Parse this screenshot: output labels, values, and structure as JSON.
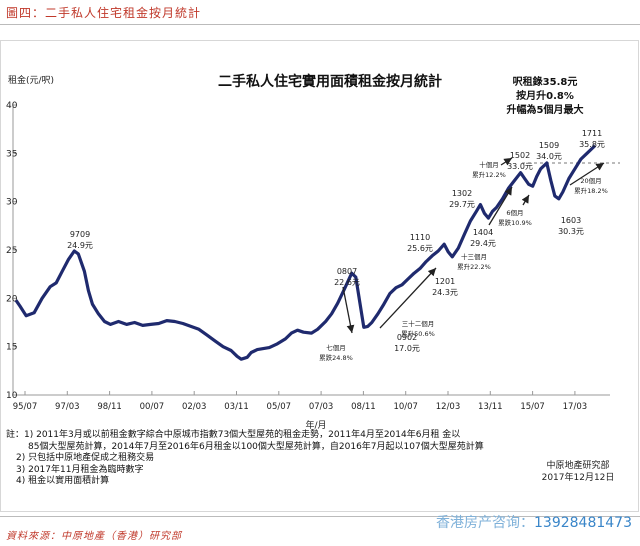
{
  "figure_caption": "圖四：二手私人住宅租金按月統計",
  "source": "資料來源：中原地產（香港）研究部",
  "watermark": {
    "prefix": "香港房产咨询：",
    "phone": "13928481473"
  },
  "credit": [
    "中原地產研究部",
    "2017年12月12日"
  ],
  "notes": [
    "註：1) 2011年3月或以前租金數字綜合中原城市指數73個大型屋苑的租金走勢，2011年4月至2014年6月租  金以",
    "85個大型屋苑計算，2014年7月至2016年6月租金以100個大型屋苑計算，自2016年7月起以107個大型屋苑計算",
    "2) 只包括中原地產促成之租務交易",
    "3) 2017年11月租金為臨時數字",
    "4) 租金以實用面積計算"
  ],
  "chart_data": {
    "type": "line",
    "title": "二手私人住宅實用面積租金按月統計",
    "ylabel": "租金(元/呎)",
    "xlabel": "年/月",
    "ylim": [
      10,
      40
    ],
    "yticks": [
      10,
      15,
      20,
      25,
      30,
      35,
      40
    ],
    "xticks": [
      "95/07",
      "97/03",
      "98/11",
      "00/07",
      "02/03",
      "03/11",
      "05/07",
      "07/03",
      "08/11",
      "10/07",
      "12/03",
      "13/11",
      "15/07",
      "17/03"
    ],
    "reference_line": 34.0,
    "headline": [
      "呎租錄35.8元",
      "按月升0.8%",
      "升幅為5個月最大"
    ],
    "series": [
      {
        "values": [
          [
            0,
            19.8
          ],
          [
            2,
            19.2
          ],
          [
            5,
            18.2
          ],
          [
            9,
            18.5
          ],
          [
            13,
            20.0
          ],
          [
            17,
            21.2
          ],
          [
            20,
            21.6
          ],
          [
            23,
            22.8
          ],
          [
            26,
            24.0
          ],
          [
            29,
            24.9
          ],
          [
            31,
            24.6
          ],
          [
            34,
            22.8
          ],
          [
            36,
            20.8
          ],
          [
            38,
            19.4
          ],
          [
            41,
            18.4
          ],
          [
            44,
            17.6
          ],
          [
            47,
            17.3
          ],
          [
            51,
            17.6
          ],
          [
            55,
            17.3
          ],
          [
            59,
            17.5
          ],
          [
            63,
            17.2
          ],
          [
            67,
            17.3
          ],
          [
            71,
            17.4
          ],
          [
            75,
            17.7
          ],
          [
            79,
            17.6
          ],
          [
            83,
            17.4
          ],
          [
            87,
            17.1
          ],
          [
            91,
            16.8
          ],
          [
            95,
            16.2
          ],
          [
            99,
            15.6
          ],
          [
            103,
            15.0
          ],
          [
            107,
            14.6
          ],
          [
            110,
            14.0
          ],
          [
            112,
            13.7
          ],
          [
            115,
            13.9
          ],
          [
            117,
            14.4
          ],
          [
            120,
            14.7
          ],
          [
            123,
            14.8
          ],
          [
            126,
            14.9
          ],
          [
            130,
            15.3
          ],
          [
            134,
            15.8
          ],
          [
            137,
            16.4
          ],
          [
            140,
            16.7
          ],
          [
            143,
            16.5
          ],
          [
            147,
            16.4
          ],
          [
            150,
            16.8
          ],
          [
            154,
            17.6
          ],
          [
            157,
            18.4
          ],
          [
            160,
            19.5
          ],
          [
            163,
            20.8
          ],
          [
            165,
            21.7
          ],
          [
            167,
            22.6
          ],
          [
            169,
            22.2
          ],
          [
            171,
            19.6
          ],
          [
            173,
            17.0
          ],
          [
            175,
            17.1
          ],
          [
            177,
            17.5
          ],
          [
            180,
            18.4
          ],
          [
            183,
            19.4
          ],
          [
            186,
            20.5
          ],
          [
            189,
            21.1
          ],
          [
            192,
            21.4
          ],
          [
            195,
            22.0
          ],
          [
            198,
            22.6
          ],
          [
            201,
            23.1
          ],
          [
            204,
            23.8
          ],
          [
            207,
            24.4
          ],
          [
            210,
            24.9
          ],
          [
            213,
            25.6
          ],
          [
            215,
            24.8
          ],
          [
            217,
            24.3
          ],
          [
            220,
            25.2
          ],
          [
            223,
            26.6
          ],
          [
            226,
            28.0
          ],
          [
            229,
            29.0
          ],
          [
            231,
            29.7
          ],
          [
            233,
            28.8
          ],
          [
            235,
            28.3
          ],
          [
            237,
            29.0
          ],
          [
            239,
            29.4
          ],
          [
            242,
            30.3
          ],
          [
            245,
            31.4
          ],
          [
            248,
            32.2
          ],
          [
            251,
            33.0
          ],
          [
            253,
            32.4
          ],
          [
            255,
            31.8
          ],
          [
            257,
            31.6
          ],
          [
            259,
            32.6
          ],
          [
            261,
            33.4
          ],
          [
            264,
            34.0
          ],
          [
            266,
            32.2
          ],
          [
            268,
            30.6
          ],
          [
            270,
            30.3
          ],
          [
            272,
            31.0
          ],
          [
            275,
            32.4
          ],
          [
            278,
            33.4
          ],
          [
            281,
            34.4
          ],
          [
            284,
            35.0
          ],
          [
            286,
            35.4
          ],
          [
            288,
            35.8
          ]
        ]
      }
    ],
    "annotations": [
      {
        "period": "9709",
        "value": "24.9元"
      },
      {
        "period": "0807",
        "value": "22.6元"
      },
      {
        "period": "0902",
        "value": "17.0元"
      },
      {
        "period": "1110",
        "value": "25.6元"
      },
      {
        "period": "1201",
        "value": "24.3元"
      },
      {
        "period": "1302",
        "value": "29.7元"
      },
      {
        "period": "1404",
        "value": "29.4元"
      },
      {
        "period": "1502",
        "value": "33.0元"
      },
      {
        "period": "1509",
        "value": "34.0元"
      },
      {
        "period": "1603",
        "value": "30.3元"
      },
      {
        "period": "1711",
        "value": "35.8元"
      }
    ],
    "arrow_notes": [
      {
        "lines": [
          "七個月",
          "累跌24.8%"
        ]
      },
      {
        "lines": [
          "三十二個月",
          "累升50.6%"
        ]
      },
      {
        "lines": [
          "十三個月",
          "累升22.2%"
        ]
      },
      {
        "lines": [
          "十個月",
          "累升12.2%"
        ]
      },
      {
        "lines": [
          "6個月",
          "累跌10.9%"
        ]
      },
      {
        "lines": [
          "20個月",
          "累升18.2%"
        ]
      }
    ]
  }
}
